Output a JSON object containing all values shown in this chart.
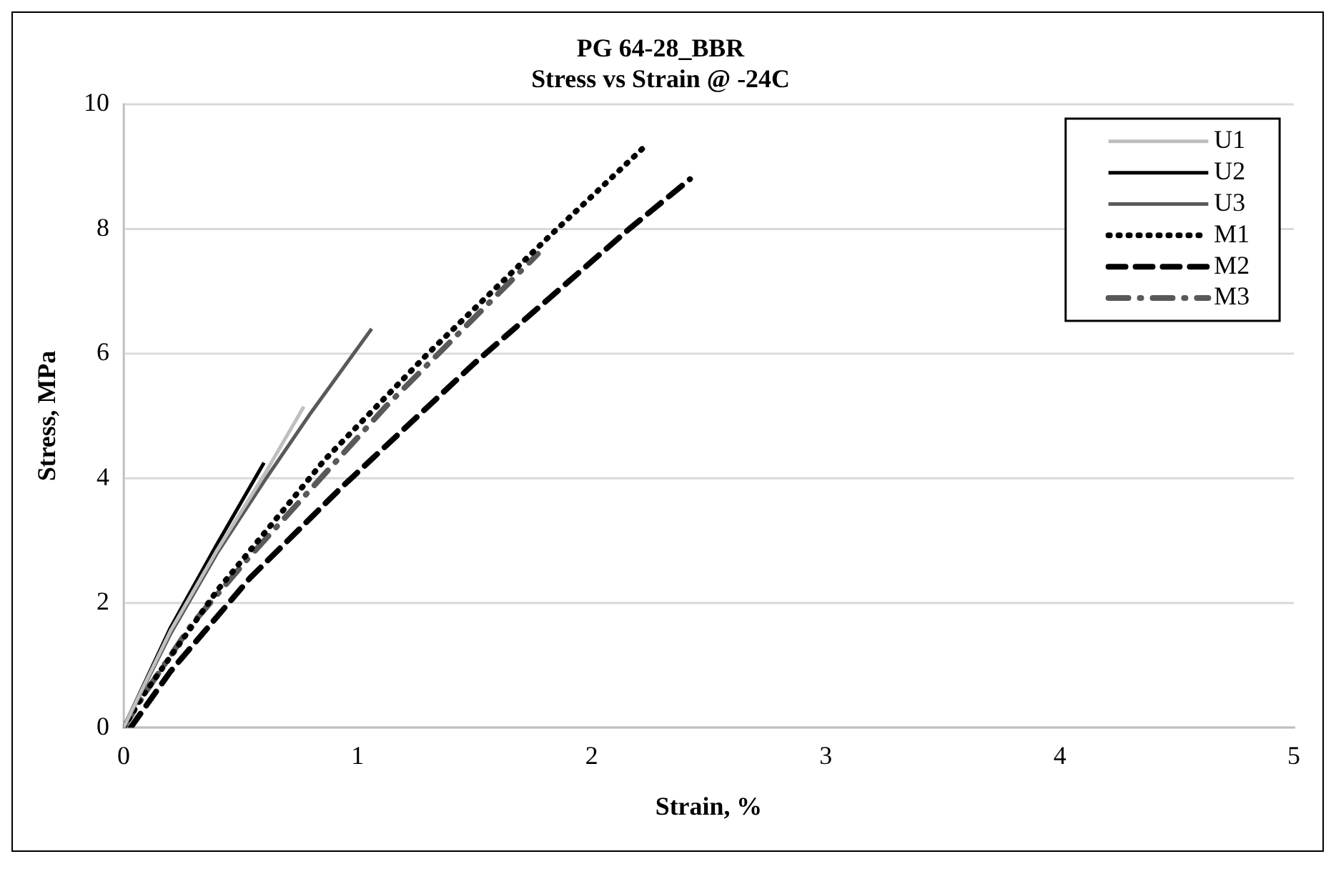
{
  "chart_data": {
    "type": "line",
    "title": "PG 64-28_BBR",
    "subtitle": "Stress vs Strain @ -24C",
    "xlabel": "Strain, %",
    "ylabel": "Stress, MPa",
    "xlim": [
      0,
      5
    ],
    "xticks": [
      0,
      1,
      2,
      3,
      4,
      5
    ],
    "ylim": [
      0,
      10
    ],
    "yticks": [
      0,
      2,
      4,
      6,
      8,
      10
    ],
    "grid": "y",
    "legend": "top right",
    "marker": "none",
    "series": [
      {
        "name": "U1",
        "color": "#bfbfbf",
        "line_style": "solid",
        "x": [
          0,
          0.2,
          0.4,
          0.6,
          0.77
        ],
        "values": [
          0,
          1.55,
          2.85,
          4.05,
          5.15
        ]
      },
      {
        "name": "U2",
        "color": "#000000",
        "line_style": "solid",
        "x": [
          0,
          0.2,
          0.4,
          0.6
        ],
        "values": [
          0,
          1.6,
          2.95,
          4.25
        ]
      },
      {
        "name": "U3",
        "color": "#595959",
        "line_style": "solid",
        "x": [
          0,
          0.2,
          0.4,
          0.6,
          0.8,
          1.06
        ],
        "values": [
          0,
          1.5,
          2.8,
          3.95,
          5.05,
          6.4
        ]
      },
      {
        "name": "M1",
        "color": "#000000",
        "line_style": "dotted",
        "x": [
          0,
          0.08,
          0.4,
          0.86,
          1.3,
          1.81,
          2.22
        ],
        "values": [
          0,
          0.5,
          2.2,
          4.3,
          6.0,
          7.85,
          9.3
        ]
      },
      {
        "name": "M2",
        "color": "#000000",
        "line_style": "dashed",
        "x": [
          0.03,
          0.2,
          0.54,
          0.93,
          1.5,
          2.16,
          2.42
        ],
        "values": [
          0,
          0.9,
          2.4,
          3.85,
          5.85,
          8.0,
          8.8
        ]
      },
      {
        "name": "M3",
        "color": "#595959",
        "line_style": "dashdot",
        "x": [
          0,
          0.1,
          0.29,
          0.54,
          1.12,
          1.77
        ],
        "values": [
          0,
          0.6,
          1.65,
          2.75,
          5.15,
          7.6
        ]
      }
    ]
  }
}
